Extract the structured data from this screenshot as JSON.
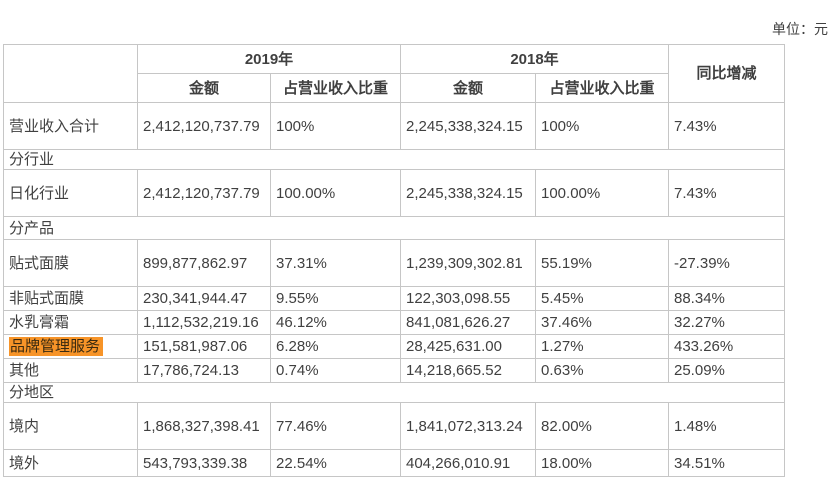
{
  "unit_label": "单位：元",
  "colors": {
    "highlight": "#f79428",
    "border": "#c6c6c6",
    "text": "#404040"
  },
  "table": {
    "header": {
      "year_2019": "2019年",
      "year_2018": "2018年",
      "yoy": "同比增减",
      "amount": "金额",
      "share": "占营业收入比重"
    },
    "rows": [
      {
        "type": "data",
        "label": "营业收入合计",
        "a2019": "2,412,120,737.79",
        "s2019": "100%",
        "a2018": "2,245,338,324.15",
        "s2018": "100%",
        "yoy": "7.43%"
      },
      {
        "type": "section",
        "label": "分行业"
      },
      {
        "type": "data",
        "label": "日化行业",
        "a2019": "2,412,120,737.79",
        "s2019": "100.00%",
        "a2018": "2,245,338,324.15",
        "s2018": "100.00%",
        "yoy": "7.43%"
      },
      {
        "type": "section",
        "label": "分产品"
      },
      {
        "type": "data",
        "label": "贴式面膜",
        "a2019": "899,877,862.97",
        "s2019": "37.31%",
        "a2018": "1,239,309,302.81",
        "s2018": "55.19%",
        "yoy": "-27.39%"
      },
      {
        "type": "data",
        "label": "非贴式面膜",
        "a2019": "230,341,944.47",
        "s2019": "9.55%",
        "a2018": "122,303,098.55",
        "s2018": "5.45%",
        "yoy": "88.34%"
      },
      {
        "type": "data",
        "label": "水乳膏霜",
        "a2019": "1,112,532,219.16",
        "s2019": "46.12%",
        "a2018": "841,081,626.27",
        "s2018": "37.46%",
        "yoy": "32.27%"
      },
      {
        "type": "data",
        "label": "品牌管理服务",
        "highlighted": true,
        "a2019": "151,581,987.06",
        "s2019": "6.28%",
        "a2018": "28,425,631.00",
        "s2018": "1.27%",
        "yoy": "433.26%"
      },
      {
        "type": "data",
        "label": "其他",
        "a2019": "17,786,724.13",
        "s2019": "0.74%",
        "a2018": "14,218,665.52",
        "s2018": "0.63%",
        "yoy": "25.09%"
      },
      {
        "type": "section",
        "label": "分地区"
      },
      {
        "type": "data",
        "label": "境内",
        "a2019": "1,868,327,398.41",
        "s2019": "77.46%",
        "a2018": "1,841,072,313.24",
        "s2018": "82.00%",
        "yoy": "1.48%"
      },
      {
        "type": "data",
        "label": "境外",
        "a2019": "543,793,339.38",
        "s2019": "22.54%",
        "a2018": "404,266,010.91",
        "s2018": "18.00%",
        "yoy": "34.51%"
      }
    ]
  }
}
